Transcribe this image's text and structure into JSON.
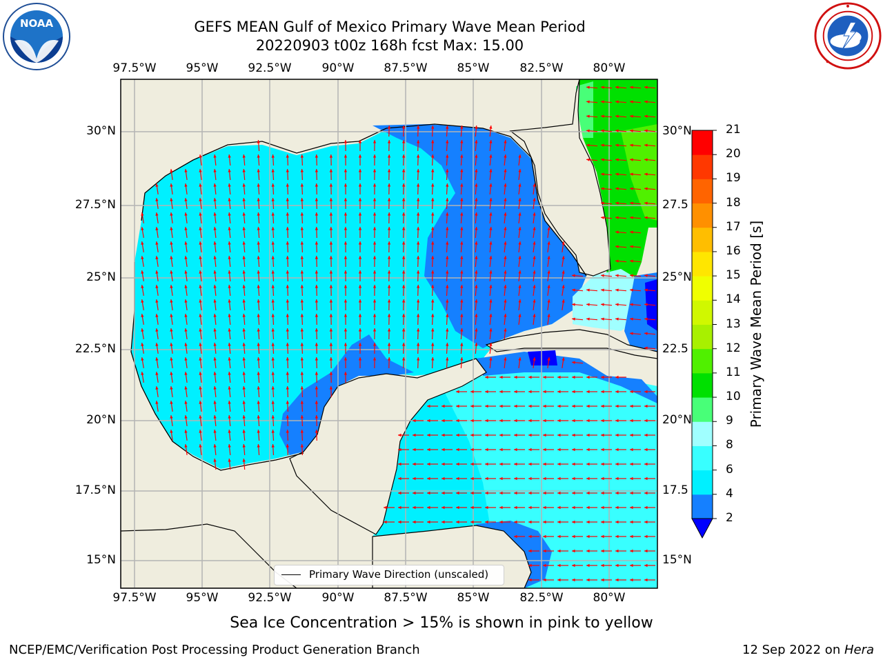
{
  "title": {
    "line1": "GEFS MEAN Gulf of Mexico Primary Wave Mean Period",
    "line2": "20220903 t00z 168h fcst   Max: 15.00"
  },
  "logos": {
    "left": {
      "icon": "noaa-logo",
      "text": "NOAA"
    },
    "right": {
      "icon": "national-weather-service-logo"
    }
  },
  "map": {
    "lon_ticks_top": [
      "97.5°W",
      "95°W",
      "92.5°W",
      "90°W",
      "87.5°W",
      "85°W",
      "82.5°W",
      "80°W"
    ],
    "lon_ticks_bottom": [
      "97.5°W",
      "95°W",
      "92.5°W",
      "90°W",
      "87.5°W",
      "85°W",
      "82.5°W",
      "80°W"
    ],
    "lat_ticks_left": [
      "30°N",
      "27.5°N",
      "25°N",
      "22.5°N",
      "20°N",
      "17.5°N",
      "15°N"
    ],
    "lat_ticks_right": [
      "30°N",
      "27.5",
      "25°N",
      "22.5",
      "20°N",
      "17.5",
      "15°N"
    ],
    "land_color": "#efedde",
    "grid_color": "#b4b4b4",
    "arrow_color": "#ff0000",
    "coast_color": "#000000"
  },
  "legend": {
    "label": "Primary Wave Direction (unscaled)"
  },
  "colorbar": {
    "title": "Primary Wave Mean Period [s]",
    "levels": [
      "2",
      "4",
      "6",
      "8",
      "9",
      "10",
      "11",
      "12",
      "13",
      "14",
      "15",
      "16",
      "17",
      "18",
      "19",
      "20",
      "21"
    ],
    "colors": [
      "#1580ff",
      "#00f0ff",
      "#38ffff",
      "#a0ffff",
      "#48ff78",
      "#00e000",
      "#50f000",
      "#a8f000",
      "#d0f800",
      "#f0ff00",
      "#ffe600",
      "#ffbe00",
      "#ff9000",
      "#ff6400",
      "#ff3800",
      "#ff0000"
    ],
    "extend_color": "#0000ff"
  },
  "caption": "Sea Ice Concentration > 15% is shown in pink to yellow",
  "footer": {
    "left": "NCEP/EMC/Verification Post Processing Product Generation Branch",
    "date": "12 Sep 2022 on ",
    "host": "Hera"
  }
}
